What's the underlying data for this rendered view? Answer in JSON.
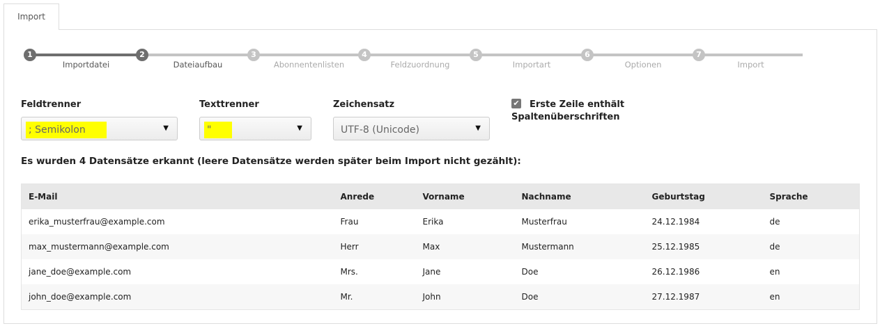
{
  "tab": {
    "label": "Import"
  },
  "steps": [
    {
      "num": "1",
      "label": "Importdatei",
      "state": "done"
    },
    {
      "num": "2",
      "label": "Dateiaufbau",
      "state": "active"
    },
    {
      "num": "3",
      "label": "Abonnentenlisten",
      "state": "pending"
    },
    {
      "num": "4",
      "label": "Feldzuordnung",
      "state": "pending"
    },
    {
      "num": "5",
      "label": "Importart",
      "state": "pending"
    },
    {
      "num": "6",
      "label": "Optionen",
      "state": "pending"
    },
    {
      "num": "7",
      "label": "Import",
      "state": "pending"
    }
  ],
  "colors": {
    "done": "#6e6e6e",
    "pending": "#c4c4c4",
    "highlight": "#ffff00"
  },
  "form": {
    "feldtrenner": {
      "label": "Feldtrenner",
      "value": "; Semikolon"
    },
    "texttrenner": {
      "label": "Texttrenner",
      "value": "\""
    },
    "zeichensatz": {
      "label": "Zeichensatz",
      "value": "UTF-8 (Unicode)"
    },
    "header_checkbox": {
      "label": "Erste Zeile enthält Spaltenüberschriften",
      "checked": true
    }
  },
  "summary": "Es wurden 4 Datensätze erkannt (leere Datensätze werden später beim Import nicht gezählt):",
  "table": {
    "columns": [
      "E-Mail",
      "Anrede",
      "Vorname",
      "Nachname",
      "Geburtstag",
      "Sprache"
    ],
    "rows": [
      [
        "erika_musterfrau@example.com",
        "Frau",
        "Erika",
        "Musterfrau",
        "24.12.1984",
        "de"
      ],
      [
        "max_mustermann@example.com",
        "Herr",
        "Max",
        "Mustermann",
        "25.12.1985",
        "de"
      ],
      [
        "jane_doe@example.com",
        "Mrs.",
        "Jane",
        "Doe",
        "26.12.1986",
        "en"
      ],
      [
        "john_doe@example.com",
        "Mr.",
        "John",
        "Doe",
        "27.12.1987",
        "en"
      ]
    ]
  }
}
